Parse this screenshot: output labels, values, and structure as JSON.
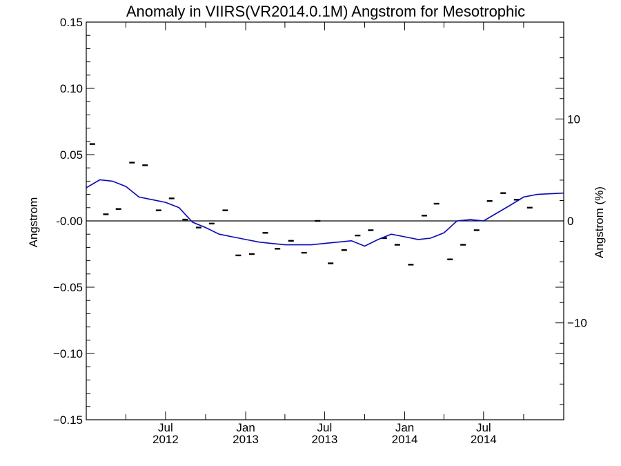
{
  "chart_data": {
    "type": "scatter",
    "title": "Anomaly in VIIRS(VR2014.0.1M) Angstrom for Mesotrophic",
    "ylabel": "Angstrom",
    "y2label": "Angstrom (%)",
    "xlabel": "",
    "ylim": [
      -0.15,
      0.15
    ],
    "y2lim": [
      -19.5,
      19.5
    ],
    "xlim": [
      "2012-01-01",
      "2015-01-01"
    ],
    "yticks": [
      "0.15",
      "0.10",
      "0.05",
      "-0.00",
      "−0.05",
      "−0.10",
      "−0.15"
    ],
    "y2ticks": [
      "10",
      "0",
      "−10"
    ],
    "xticks": [
      {
        "month": "Jul",
        "year": "2012",
        "date": "2012-07-01"
      },
      {
        "month": "Jan",
        "year": "2013",
        "date": "2013-01-01"
      },
      {
        "month": "Jul",
        "year": "2013",
        "date": "2013-07-01"
      },
      {
        "month": "Jan",
        "year": "2014",
        "date": "2014-01-01"
      },
      {
        "month": "Jul",
        "year": "2014",
        "date": "2014-07-01"
      }
    ],
    "zero_line": true,
    "series": [
      {
        "type": "marker",
        "color": "#000000",
        "points": [
          [
            "2012-01-15",
            0.058
          ],
          [
            "2012-02-15",
            0.005
          ],
          [
            "2012-03-15",
            0.009
          ],
          [
            "2012-04-15",
            0.044
          ],
          [
            "2012-05-15",
            0.042
          ],
          [
            "2012-06-15",
            0.008
          ],
          [
            "2012-07-15",
            0.017
          ],
          [
            "2012-08-15",
            0.001
          ],
          [
            "2012-09-15",
            -0.005
          ],
          [
            "2012-10-15",
            -0.002
          ],
          [
            "2012-11-15",
            0.008
          ],
          [
            "2012-12-15",
            -0.026
          ],
          [
            "2013-01-15",
            -0.025
          ],
          [
            "2013-02-15",
            -0.009
          ],
          [
            "2013-03-15",
            -0.021
          ],
          [
            "2013-04-15",
            -0.015
          ],
          [
            "2013-05-15",
            -0.024
          ],
          [
            "2013-06-15",
            0.0
          ],
          [
            "2013-07-15",
            -0.032
          ],
          [
            "2013-08-15",
            -0.022
          ],
          [
            "2013-09-15",
            -0.011
          ],
          [
            "2013-10-15",
            -0.007
          ],
          [
            "2013-11-15",
            -0.013
          ],
          [
            "2013-12-15",
            -0.018
          ],
          [
            "2014-01-15",
            -0.033
          ],
          [
            "2014-02-15",
            0.004
          ],
          [
            "2014-03-15",
            0.013
          ],
          [
            "2014-04-15",
            -0.029
          ],
          [
            "2014-05-15",
            -0.018
          ],
          [
            "2014-06-15",
            -0.007
          ],
          [
            "2014-07-15",
            0.015
          ],
          [
            "2014-08-15",
            0.021
          ],
          [
            "2014-09-15",
            0.016
          ],
          [
            "2014-10-15",
            0.01
          ]
        ]
      },
      {
        "type": "line",
        "color": "#0000ff",
        "points": [
          [
            "2012-01-01",
            0.025
          ],
          [
            "2012-02-01",
            0.031
          ],
          [
            "2012-03-01",
            0.03
          ],
          [
            "2012-04-01",
            0.026
          ],
          [
            "2012-05-01",
            0.018
          ],
          [
            "2012-06-01",
            0.016
          ],
          [
            "2012-07-01",
            0.014
          ],
          [
            "2012-08-01",
            0.01
          ],
          [
            "2012-09-01",
            -0.001
          ],
          [
            "2012-10-01",
            -0.005
          ],
          [
            "2012-11-01",
            -0.01
          ],
          [
            "2012-12-01",
            -0.012
          ],
          [
            "2013-01-01",
            -0.014
          ],
          [
            "2013-02-01",
            -0.016
          ],
          [
            "2013-03-01",
            -0.017
          ],
          [
            "2013-04-01",
            -0.018
          ],
          [
            "2013-05-01",
            -0.018
          ],
          [
            "2013-06-01",
            -0.018
          ],
          [
            "2013-07-01",
            -0.017
          ],
          [
            "2013-08-01",
            -0.016
          ],
          [
            "2013-09-01",
            -0.015
          ],
          [
            "2013-10-01",
            -0.019
          ],
          [
            "2013-11-01",
            -0.014
          ],
          [
            "2013-12-01",
            -0.01
          ],
          [
            "2014-01-01",
            -0.012
          ],
          [
            "2014-02-01",
            -0.014
          ],
          [
            "2014-03-01",
            -0.013
          ],
          [
            "2014-04-01",
            -0.009
          ],
          [
            "2014-05-01",
            0.0
          ],
          [
            "2014-06-01",
            0.001
          ],
          [
            "2014-07-01",
            0.0
          ],
          [
            "2014-08-01",
            0.006
          ],
          [
            "2014-09-01",
            0.012
          ],
          [
            "2014-10-01",
            0.018
          ],
          [
            "2014-11-01",
            0.02
          ],
          [
            "2014-12-31",
            0.021
          ]
        ]
      }
    ]
  }
}
